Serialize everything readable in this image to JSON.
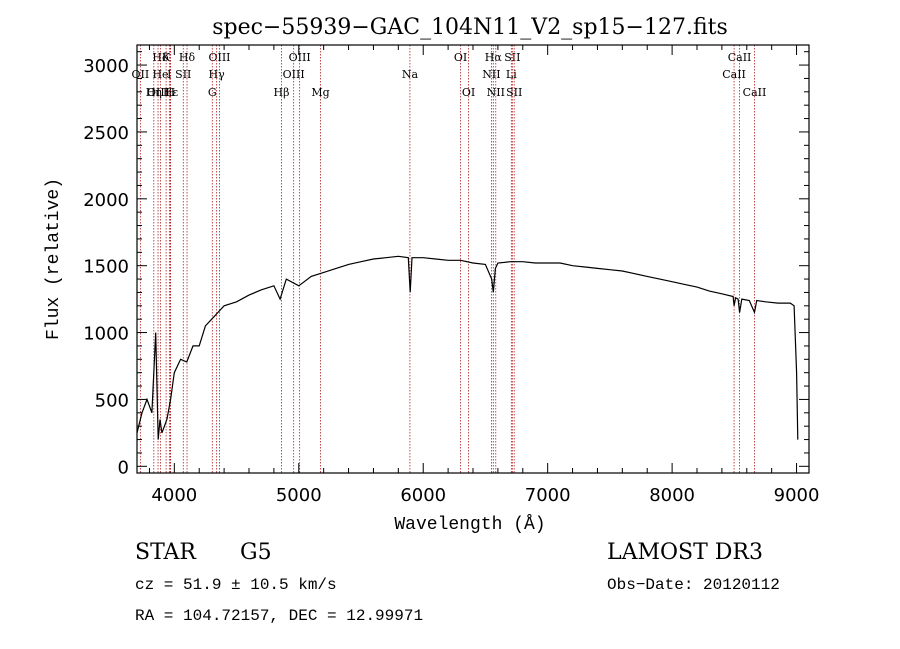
{
  "chart_data": {
    "type": "line",
    "title": "spec−55939−GAC_104N11_V2_sp15−127.fits",
    "xlabel": "Wavelength (Å)",
    "ylabel": "Flux (relative)",
    "xlim": [
      3700,
      9100
    ],
    "ylim": [
      -50,
      3150
    ],
    "x_ticks": [
      4000,
      5000,
      6000,
      7000,
      8000,
      9000
    ],
    "x_tick_labels": [
      "4000",
      "5000",
      "6000",
      "7000",
      "8000",
      "9000"
    ],
    "y_ticks": [
      0,
      500,
      1000,
      1500,
      2000,
      2500,
      3000
    ],
    "y_tick_labels": [
      "0",
      "500",
      "1000",
      "1500",
      "2000",
      "2500",
      "3000"
    ],
    "line_color": "#000000",
    "marker_color": "#b22222",
    "spectrum": {
      "name": "flux",
      "x": [
        3700,
        3740,
        3780,
        3820,
        3850,
        3870,
        3885,
        3900,
        3940,
        3970,
        4000,
        4050,
        4100,
        4150,
        4200,
        4250,
        4300,
        4350,
        4400,
        4500,
        4600,
        4700,
        4800,
        4850,
        4900,
        5000,
        5100,
        5200,
        5300,
        5400,
        5500,
        5600,
        5700,
        5800,
        5880,
        5895,
        5910,
        6000,
        6100,
        6200,
        6300,
        6400,
        6500,
        6550,
        6563,
        6580,
        6600,
        6700,
        6800,
        6900,
        7000,
        7100,
        7200,
        7300,
        7400,
        7500,
        7600,
        7700,
        7800,
        7900,
        8000,
        8100,
        8200,
        8300,
        8400,
        8490,
        8498,
        8510,
        8530,
        8542,
        8560,
        8620,
        8662,
        8680,
        8750,
        8850,
        8950,
        8980,
        9000,
        9010
      ],
      "values": [
        250,
        400,
        500,
        400,
        1000,
        200,
        350,
        250,
        350,
        500,
        700,
        800,
        780,
        900,
        900,
        1050,
        1100,
        1150,
        1200,
        1230,
        1280,
        1320,
        1350,
        1250,
        1400,
        1350,
        1420,
        1450,
        1480,
        1510,
        1530,
        1550,
        1560,
        1570,
        1560,
        1300,
        1560,
        1560,
        1550,
        1540,
        1540,
        1520,
        1510,
        1400,
        1300,
        1480,
        1520,
        1530,
        1530,
        1520,
        1520,
        1520,
        1500,
        1490,
        1480,
        1470,
        1460,
        1440,
        1420,
        1400,
        1380,
        1360,
        1340,
        1310,
        1290,
        1270,
        1200,
        1260,
        1250,
        1150,
        1250,
        1240,
        1150,
        1240,
        1230,
        1220,
        1220,
        1200,
        700,
        200
      ]
    },
    "line_markers": [
      {
        "label": "Hδ",
        "wavelength": 3889,
        "row": 1
      },
      {
        "label": "OII",
        "wavelength": 3727,
        "row": 2
      },
      {
        "label": "OIII",
        "wavelength": 3869,
        "row": 3
      },
      {
        "label": "Hε",
        "wavelength": 3970,
        "row": 3
      },
      {
        "label": "Hη",
        "wavelength": 3835,
        "row": 3
      },
      {
        "label": "K",
        "wavelength": 3934,
        "row": 1
      },
      {
        "label": "He",
        "wavelength": 3889,
        "row": 2
      },
      {
        "label": "I",
        "wavelength": 3960,
        "row": 2
      },
      {
        "label": "SII",
        "wavelength": 4072,
        "row": 2
      },
      {
        "label": "H",
        "wavelength": 3968,
        "row": 3
      },
      {
        "label": "Hδ",
        "wavelength": 4102,
        "row": 1
      },
      {
        "label": "OIII",
        "wavelength": 4363,
        "row": 1
      },
      {
        "label": "Hγ",
        "wavelength": 4340,
        "row": 2
      },
      {
        "label": "G",
        "wavelength": 4305,
        "row": 3
      },
      {
        "label": "OIII",
        "wavelength": 5007,
        "row": 1
      },
      {
        "label": "OIII",
        "wavelength": 4959,
        "row": 2
      },
      {
        "label": "Hβ",
        "wavelength": 4861,
        "row": 3
      },
      {
        "label": "Mg",
        "wavelength": 5175,
        "row": 3
      },
      {
        "label": "Na",
        "wavelength": 5893,
        "row": 2
      },
      {
        "label": "OI",
        "wavelength": 6300,
        "row": 1
      },
      {
        "label": "OI",
        "wavelength": 6364,
        "row": 3
      },
      {
        "label": "Hα",
        "wavelength": 6563,
        "row": 1
      },
      {
        "label": "SII",
        "wavelength": 6716,
        "row": 1
      },
      {
        "label": "NII",
        "wavelength": 6548,
        "row": 2
      },
      {
        "label": "Li",
        "wavelength": 6708,
        "row": 2
      },
      {
        "label": "NII",
        "wavelength": 6583,
        "row": 3
      },
      {
        "label": "SII",
        "wavelength": 6731,
        "row": 3
      },
      {
        "label": "CaII",
        "wavelength": 8542,
        "row": 1
      },
      {
        "label": "CaII",
        "wavelength": 8498,
        "row": 2
      },
      {
        "label": "CaII",
        "wavelength": 8662,
        "row": 3
      }
    ]
  },
  "info": {
    "object_class": "STAR",
    "subclass": "G5",
    "survey": "LAMOST DR3",
    "redshift": "cz = 51.9 ± 10.5 km/s",
    "obs_date": "Obs−Date: 20120112",
    "coords": "RA = 104.72157, DEC =  12.99971"
  }
}
